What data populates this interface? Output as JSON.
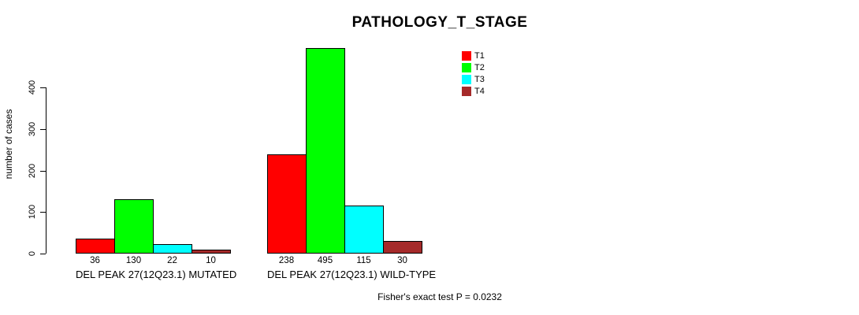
{
  "chart_data": {
    "type": "bar",
    "title": "PATHOLOGY_T_STAGE",
    "ylabel": "number of cases",
    "xlabel": "",
    "ylim": [
      0,
      400
    ],
    "yticks": [
      0,
      100,
      200,
      300,
      400
    ],
    "grid": false,
    "legend_position": "top-right-inside",
    "bar_border_color": "#000000",
    "background_color": "#ffffff",
    "series": [
      {
        "name": "T1",
        "color": "#ff0000"
      },
      {
        "name": "T2",
        "color": "#00ff00"
      },
      {
        "name": "T3",
        "color": "#00ffff"
      },
      {
        "name": "T4",
        "color": "#a52a2a"
      }
    ],
    "groups": [
      {
        "label": "DEL PEAK 27(12Q23.1) MUTATED",
        "values": [
          36,
          130,
          22,
          10
        ]
      },
      {
        "label": "DEL PEAK 27(12Q23.1) WILD-TYPE",
        "values": [
          238,
          495,
          115,
          30
        ]
      }
    ],
    "annotation": "Fisher's exact test P = 0.0232"
  }
}
